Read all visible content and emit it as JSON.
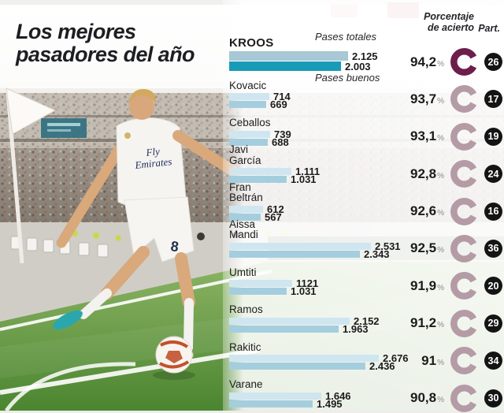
{
  "title": {
    "line1": "Los mejores",
    "line2": "pasadores del año"
  },
  "chart": {
    "series_labels": {
      "total": "Pases totales",
      "good": "Pases buenos"
    },
    "accuracy_header": [
      "Porcentaje",
      "de acierto"
    ],
    "participation_header": "Part.",
    "percent_sign": "%"
  },
  "photo": {
    "shirt_sponsor_line1": "Fly",
    "shirt_sponsor_line2": "Emirates",
    "shorts_number": "8"
  },
  "colors": {
    "bar_total": "#cfe6f0",
    "bar_good": "#a4cede",
    "bar_total_highlight": "#a7c8d4",
    "bar_good_highlight": "#189bb7",
    "ring_highlight": "#6d1e4b",
    "ring_default": "#b49ba6",
    "badge_bg": "#141414",
    "title_color": "#1d1e22"
  },
  "chart_data": {
    "type": "bar",
    "orientation": "horizontal",
    "series": [
      "Pases totales",
      "Pases buenos"
    ],
    "value_range": [
      0,
      2676
    ],
    "players": [
      {
        "name": "Kroos",
        "name_lines": [
          "KROOS"
        ],
        "total": 2125,
        "total_label": "2.125",
        "good": 2003,
        "good_label": "2.003",
        "accuracy_pct": 94.2,
        "accuracy_label": "94,2",
        "participation": 26,
        "highlight": true
      },
      {
        "name": "Kovacic",
        "name_lines": [
          "Kovacic"
        ],
        "total": 714,
        "total_label": "714",
        "good": 669,
        "good_label": "669",
        "accuracy_pct": 93.7,
        "accuracy_label": "93,7",
        "participation": 17,
        "highlight": false
      },
      {
        "name": "Ceballos",
        "name_lines": [
          "Ceballos"
        ],
        "total": 739,
        "total_label": "739",
        "good": 688,
        "good_label": "688",
        "accuracy_pct": 93.1,
        "accuracy_label": "93,1",
        "participation": 19,
        "highlight": false
      },
      {
        "name": "Javi García",
        "name_lines": [
          "Javi",
          "García"
        ],
        "total": 1111,
        "total_label": "1.111",
        "good": 1031,
        "good_label": "1.031",
        "accuracy_pct": 92.8,
        "accuracy_label": "92,8",
        "participation": 24,
        "highlight": false
      },
      {
        "name": "Fran Beltrán",
        "name_lines": [
          "Fran",
          "Beltrán"
        ],
        "total": 612,
        "total_label": "612",
        "good": 567,
        "good_label": "567",
        "accuracy_pct": 92.6,
        "accuracy_label": "92,6",
        "participation": 16,
        "highlight": false
      },
      {
        "name": "Aissa Mandi",
        "name_lines": [
          "Aissa",
          "Mandi"
        ],
        "total": 2531,
        "total_label": "2.531",
        "good": 2343,
        "good_label": "2.343",
        "accuracy_pct": 92.5,
        "accuracy_label": "92,5",
        "participation": 36,
        "highlight": false
      },
      {
        "name": "Umtiti",
        "name_lines": [
          "Umtiti"
        ],
        "total": 1121,
        "total_label": "1121",
        "good": 1031,
        "good_label": "1.031",
        "accuracy_pct": 91.9,
        "accuracy_label": "91,9",
        "participation": 20,
        "highlight": false
      },
      {
        "name": "Ramos",
        "name_lines": [
          "Ramos"
        ],
        "total": 2152,
        "total_label": "2.152",
        "good": 1963,
        "good_label": "1.963",
        "accuracy_pct": 91.2,
        "accuracy_label": "91,2",
        "participation": 29,
        "highlight": false
      },
      {
        "name": "Rakitic",
        "name_lines": [
          "Rakitic"
        ],
        "total": 2676,
        "total_label": "2.676",
        "good": 2436,
        "good_label": "2.436",
        "accuracy_pct": 91.0,
        "accuracy_label": "91",
        "participation": 34,
        "highlight": false
      },
      {
        "name": "Varane",
        "name_lines": [
          "Varane"
        ],
        "total": 1646,
        "total_label": "1.646",
        "good": 1495,
        "good_label": "1.495",
        "accuracy_pct": 90.8,
        "accuracy_label": "90,8",
        "participation": 30,
        "highlight": false
      }
    ]
  }
}
